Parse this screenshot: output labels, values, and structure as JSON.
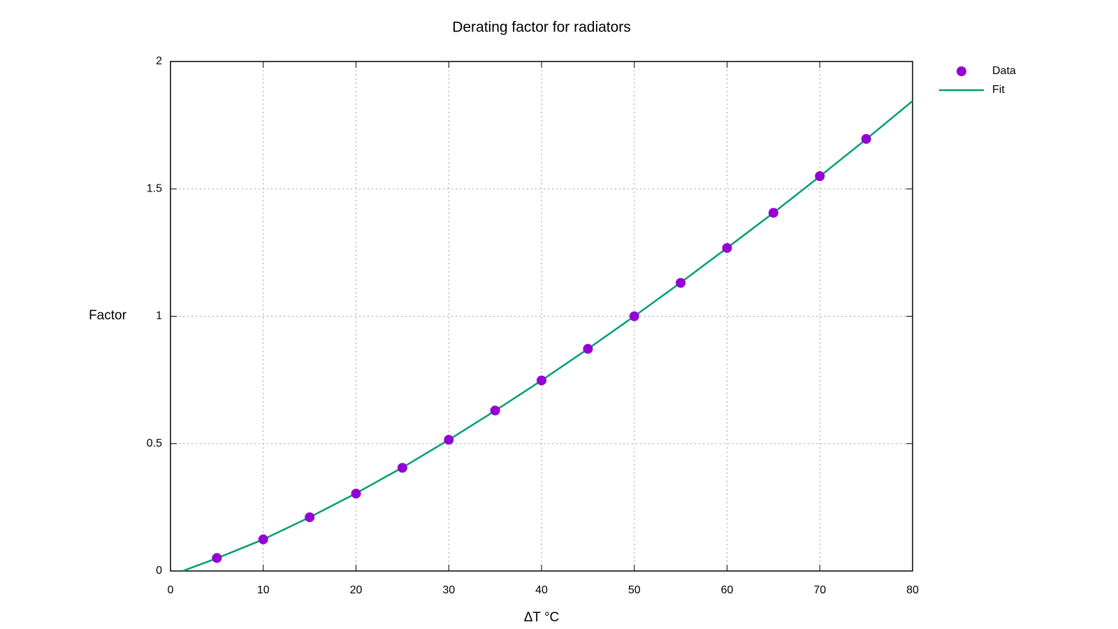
{
  "chart_data": {
    "type": "scatter",
    "title": "Derating factor for radiators",
    "x_label": "ΔT °C",
    "y_label": "Factor",
    "xlim": [
      0,
      80
    ],
    "xticks": [
      0,
      10,
      20,
      30,
      40,
      50,
      60,
      70,
      80
    ],
    "ylim": [
      0,
      2
    ],
    "yticks": [
      0,
      0.5,
      1,
      1.5,
      2
    ],
    "grid": true,
    "legend": "outside-top-right",
    "series": [
      {
        "name": "Data",
        "type": "scatter",
        "color": "#9400d3",
        "x": [
          5,
          10,
          15,
          20,
          25,
          30,
          35,
          40,
          45,
          50,
          55,
          60,
          65,
          70,
          75
        ],
        "values": [
          0.051,
          0.124,
          0.211,
          0.304,
          0.405,
          0.515,
          0.63,
          0.748,
          0.872,
          1.0,
          1.131,
          1.268,
          1.406,
          1.55,
          1.696
        ]
      },
      {
        "name": "Fit",
        "type": "line",
        "color": "#009e73",
        "x": [
          1.3,
          5,
          10,
          15,
          20,
          25,
          30,
          35,
          40,
          45,
          50,
          55,
          60,
          65,
          70,
          75,
          80
        ],
        "values": [
          0,
          0.05,
          0.124,
          0.211,
          0.305,
          0.406,
          0.515,
          0.629,
          0.748,
          0.872,
          1.0,
          1.132,
          1.268,
          1.406,
          1.549,
          1.695,
          1.845
        ]
      }
    ]
  }
}
